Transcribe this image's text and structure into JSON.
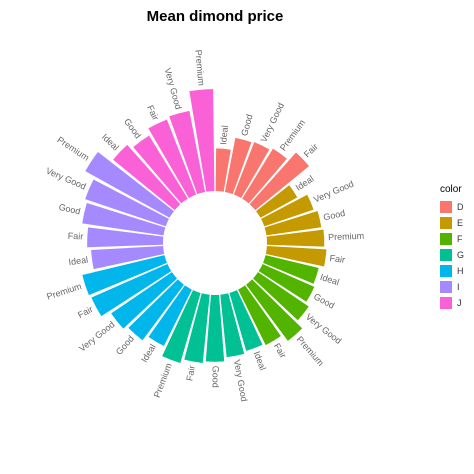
{
  "chart_data": {
    "type": "bar",
    "coord": "polar",
    "title": "Mean dimond price",
    "xlabel": "",
    "ylabel": "",
    "grid": false,
    "legend_position": "right",
    "legend": {
      "title": "color",
      "items": [
        {
          "label": "D",
          "color": "#F8766D"
        },
        {
          "label": "E",
          "color": "#C49A00"
        },
        {
          "label": "F",
          "color": "#53B400"
        },
        {
          "label": "G",
          "color": "#00C094"
        },
        {
          "label": "H",
          "color": "#00B6EB"
        },
        {
          "label": "I",
          "color": "#A58AFF"
        },
        {
          "label": "J",
          "color": "#FB61D7"
        }
      ]
    },
    "series": [
      {
        "color_group": "D",
        "cuts": [
          "Ideal",
          "Good",
          "Very Good",
          "Premium",
          "Fair"
        ],
        "values": [
          2630,
          3405,
          3470,
          3631,
          4291
        ]
      },
      {
        "color_group": "E",
        "cuts": [
          "Ideal",
          "Very Good",
          "Good",
          "Premium",
          "Fair"
        ],
        "values": [
          2598,
          3215,
          3424,
          3539,
          3682
        ]
      },
      {
        "color_group": "F",
        "cuts": [
          "Ideal",
          "Good",
          "Very Good",
          "Premium",
          "Fair"
        ],
        "values": [
          3375,
          3496,
          3779,
          4325,
          3827
        ]
      },
      {
        "color_group": "G",
        "cuts": [
          "Ideal",
          "Very Good",
          "Good",
          "Fair",
          "Premium"
        ],
        "values": [
          3721,
          3873,
          4124,
          4239,
          4501
        ]
      },
      {
        "color_group": "H",
        "cuts": [
          "Ideal",
          "Good",
          "Very Good",
          "Fair",
          "Premium"
        ],
        "values": [
          3889,
          4276,
          4535,
          5136,
          5217
        ]
      },
      {
        "color_group": "I",
        "cuts": [
          "Ideal",
          "Fair",
          "Good",
          "Very Good",
          "Premium"
        ],
        "values": [
          4452,
          4685,
          5079,
          5256,
          5946
        ]
      },
      {
        "color_group": "J",
        "cuts": [
          "Ideal",
          "Good",
          "Fair",
          "Very Good",
          "Premium"
        ],
        "values": [
          4918,
          4574,
          4976,
          5104,
          6295
        ]
      }
    ]
  }
}
